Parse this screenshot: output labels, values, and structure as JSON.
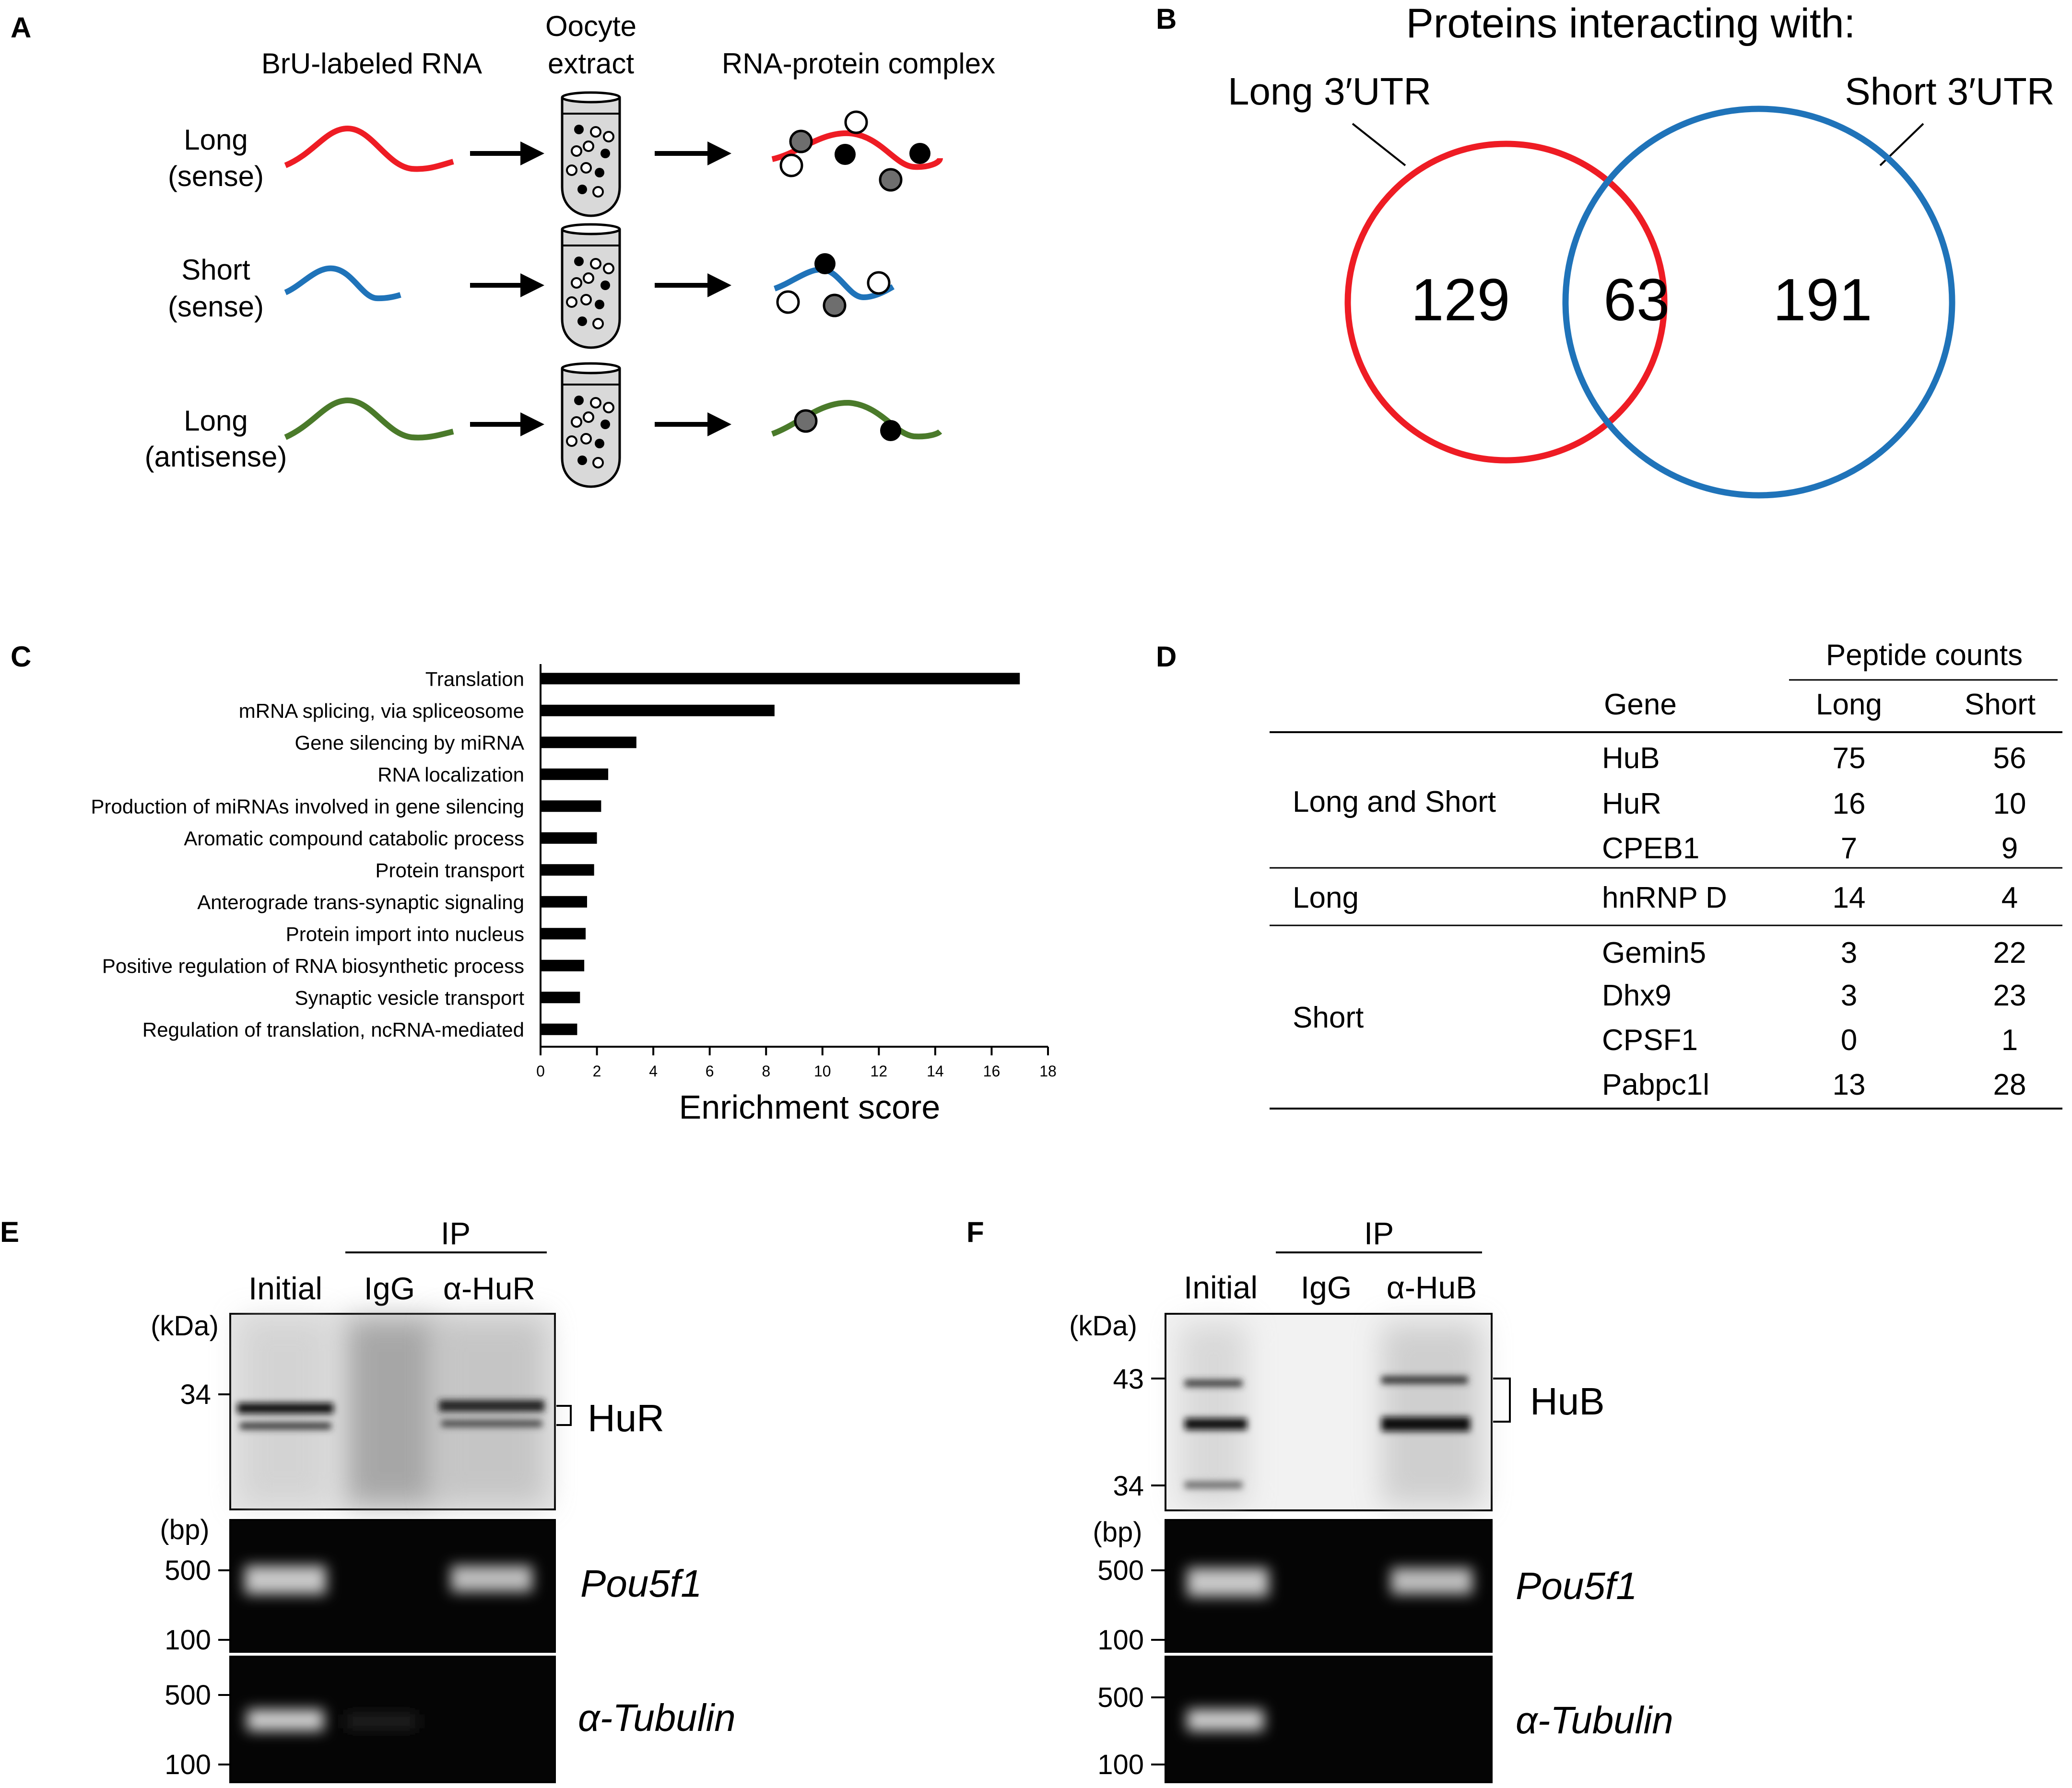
{
  "colors": {
    "long_sense": "#ee1c24",
    "short_sense": "#1f73b9",
    "long_antisense": "#4a7a2a",
    "protein_gray": "#6e6e6e",
    "tube_fill": "#d9d9d9"
  },
  "panel_a": {
    "letter": "A",
    "headers": {
      "rna": "BrU-labeled RNA",
      "oocyte_1": "Oocyte",
      "oocyte_2": "extract",
      "complex": "RNA-protein complex"
    },
    "rows": [
      {
        "line1": "Long",
        "line2": "(sense)",
        "color": "long_sense"
      },
      {
        "line1": "Short",
        "line2": "(sense)",
        "color": "short_sense"
      },
      {
        "line1": "Long",
        "line2": "(antisense)",
        "color": "long_antisense"
      }
    ]
  },
  "panel_b": {
    "letter": "B",
    "title": "Proteins interacting with:",
    "left_label": "Long 3′UTR",
    "right_label": "Short 3′UTR",
    "counts": {
      "left_only": "129",
      "overlap": "63",
      "right_only": "191"
    }
  },
  "panel_c": {
    "letter": "C",
    "chart_data": {
      "type": "bar",
      "orientation": "horizontal",
      "categories": [
        "Translation",
        "mRNA splicing, via spliceosome",
        "Gene silencing by miRNA",
        "RNA localization",
        "Production of miRNAs involved in gene silencing",
        "Aromatic compound catabolic process",
        "Protein transport",
        "Anterograde trans-synaptic signaling",
        "Protein import into nucleus",
        "Positive regulation of RNA biosynthetic process",
        "Synaptic vesicle transport",
        "Regulation of translation, ncRNA-mediated"
      ],
      "values": [
        17.0,
        8.3,
        3.4,
        2.4,
        2.15,
        2.0,
        1.9,
        1.65,
        1.6,
        1.55,
        1.4,
        1.3
      ],
      "xlabel": "Enrichment score",
      "xlim": [
        0,
        18
      ],
      "xticks": [
        "0",
        "2",
        "4",
        "6",
        "8",
        "10",
        "12",
        "14",
        "16",
        "18"
      ],
      "grid": false
    }
  },
  "panel_d": {
    "letter": "D",
    "super_header": "Peptide counts",
    "headers": {
      "gene": "Gene",
      "long": "Long",
      "short": "Short"
    },
    "groups": [
      {
        "label": "Long and Short",
        "rows": [
          {
            "gene": "HuB",
            "long": "75",
            "short": "56"
          },
          {
            "gene": "HuR",
            "long": "16",
            "short": "10"
          },
          {
            "gene": "CPEB1",
            "long": "7",
            "short": "9"
          }
        ]
      },
      {
        "label": "Long",
        "rows": [
          {
            "gene": "hnRNP D",
            "long": "14",
            "short": "4"
          }
        ]
      },
      {
        "label": "Short",
        "rows": [
          {
            "gene": "Gemin5",
            "long": "3",
            "short": "22"
          },
          {
            "gene": "Dhx9",
            "long": "3",
            "short": "23"
          },
          {
            "gene": "CPSF1",
            "long": "0",
            "short": "1"
          },
          {
            "gene": "Pabpc1l",
            "long": "13",
            "short": "28"
          }
        ]
      }
    ]
  },
  "panel_e": {
    "letter": "E",
    "ip": "IP",
    "lanes": [
      "Initial",
      "IgG",
      "α-HuR"
    ],
    "kda": "(kDa)",
    "kda_marks": [
      "34"
    ],
    "protein": "HuR",
    "bp": "(bp)",
    "pou_marks": [
      "500",
      "100"
    ],
    "pou_label": "Pou5f1",
    "tub_marks": [
      "500",
      "100"
    ],
    "tub_label": "α-Tubulin"
  },
  "panel_f": {
    "letter": "F",
    "ip": "IP",
    "lanes": [
      "Initial",
      "IgG",
      "α-HuB"
    ],
    "kda": "(kDa)",
    "kda_marks": [
      "43",
      "34"
    ],
    "protein": "HuB",
    "bp": "(bp)",
    "pou_marks": [
      "500",
      "100"
    ],
    "pou_label": "Pou5f1",
    "tub_marks": [
      "500",
      "100"
    ],
    "tub_label": "α-Tubulin"
  }
}
